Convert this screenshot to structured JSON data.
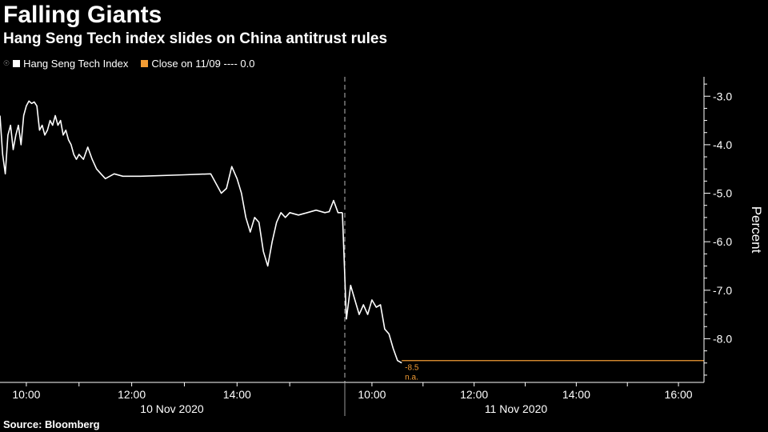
{
  "header": {
    "title": "Falling Giants",
    "subtitle": "Hang Seng Tech index slides on China antitrust rules"
  },
  "legend": [
    {
      "label": "Hang Seng Tech Index",
      "color": "#ffffff"
    },
    {
      "label": "Close on 11/09 ---- 0.0",
      "color": "#f39c34"
    }
  ],
  "source": "Source: Bloomberg",
  "chart_data": {
    "type": "line",
    "ylabel": "Percent",
    "ylim": [
      -8.9,
      -2.6
    ],
    "yticks": [
      -3.0,
      -4.0,
      -5.0,
      -6.0,
      -7.0,
      -8.0
    ],
    "ytick_labels": [
      "-3.0",
      "-4.0",
      "-5.0",
      "-6.0",
      "-7.0",
      "-8.0"
    ],
    "session_labels": [
      "10 Nov 2020",
      "11 Nov 2020"
    ],
    "time_tick_labels": [
      "10:00",
      "12:00",
      "14:00",
      "10:00",
      "12:00",
      "14:00",
      "16:00"
    ],
    "annotation": {
      "value": "-8.5",
      "note": "n.a.",
      "color": "#f39c34"
    },
    "series": [
      {
        "name": "Hang Seng Tech Index",
        "color": "#ffffff",
        "sessions": [
          {
            "date": "10 Nov 2020",
            "start": "09:30",
            "end": "16:00",
            "times": [
              "09:30",
              "09:33",
              "09:36",
              "09:39",
              "09:42",
              "09:45",
              "09:48",
              "09:51",
              "09:54",
              "09:57",
              "10:00",
              "10:03",
              "10:06",
              "10:09",
              "10:12",
              "10:15",
              "10:18",
              "10:21",
              "10:24",
              "10:27",
              "10:30",
              "10:33",
              "10:36",
              "10:39",
              "10:42",
              "10:45",
              "10:48",
              "10:51",
              "10:54",
              "10:57",
              "11:00",
              "11:05",
              "11:10",
              "11:15",
              "11:20",
              "11:25",
              "11:30",
              "11:40",
              "11:50",
              "12:00",
              "12:10",
              "13:00",
              "13:30",
              "13:42",
              "13:48",
              "13:54",
              "14:00",
              "14:05",
              "14:10",
              "14:15",
              "14:20",
              "14:25",
              "14:30",
              "14:35",
              "14:40",
              "14:45",
              "14:50",
              "14:55",
              "15:00",
              "15:10",
              "15:20",
              "15:30",
              "15:40",
              "15:45",
              "15:50",
              "15:55",
              "16:00"
            ],
            "values": [
              -3.4,
              -4.2,
              -4.6,
              -3.8,
              -3.6,
              -4.1,
              -3.8,
              -3.6,
              -4.0,
              -3.4,
              -3.2,
              -3.1,
              -3.15,
              -3.12,
              -3.2,
              -3.7,
              -3.6,
              -3.8,
              -3.7,
              -3.5,
              -3.6,
              -3.4,
              -3.6,
              -3.5,
              -3.8,
              -3.7,
              -3.9,
              -4.0,
              -4.2,
              -4.3,
              -4.2,
              -4.3,
              -4.05,
              -4.3,
              -4.5,
              -4.6,
              -4.7,
              -4.6,
              -4.65,
              -4.65,
              -4.65,
              -4.62,
              -4.6,
              -5.0,
              -4.9,
              -4.45,
              -4.7,
              -5.0,
              -5.5,
              -5.8,
              -5.5,
              -5.6,
              -6.2,
              -6.5,
              -6.0,
              -5.6,
              -5.4,
              -5.5,
              -5.4,
              -5.45,
              -5.4,
              -5.35,
              -5.4,
              -5.38,
              -5.15,
              -5.4,
              -5.4
            ]
          },
          {
            "date": "11 Nov 2020",
            "start": "09:30",
            "end": "16:30",
            "times": [
              "09:30",
              "09:35",
              "09:40",
              "09:45",
              "09:50",
              "09:55",
              "10:00",
              "10:05",
              "10:10",
              "10:15",
              "10:20",
              "10:25",
              "10:30",
              "10:35"
            ],
            "values": [
              -7.6,
              -6.9,
              -7.2,
              -7.5,
              -7.3,
              -7.5,
              -7.2,
              -7.35,
              -7.3,
              -7.8,
              -7.9,
              -8.2,
              -8.45,
              -8.5
            ]
          }
        ]
      },
      {
        "name": "Close on 11/09 ---- 0.0",
        "color": "#f39c34",
        "sessions": [
          {
            "date": "11 Nov 2020",
            "times": [
              "10:35",
              "16:30"
            ],
            "values": [
              -8.45,
              -8.45
            ]
          }
        ]
      }
    ]
  }
}
